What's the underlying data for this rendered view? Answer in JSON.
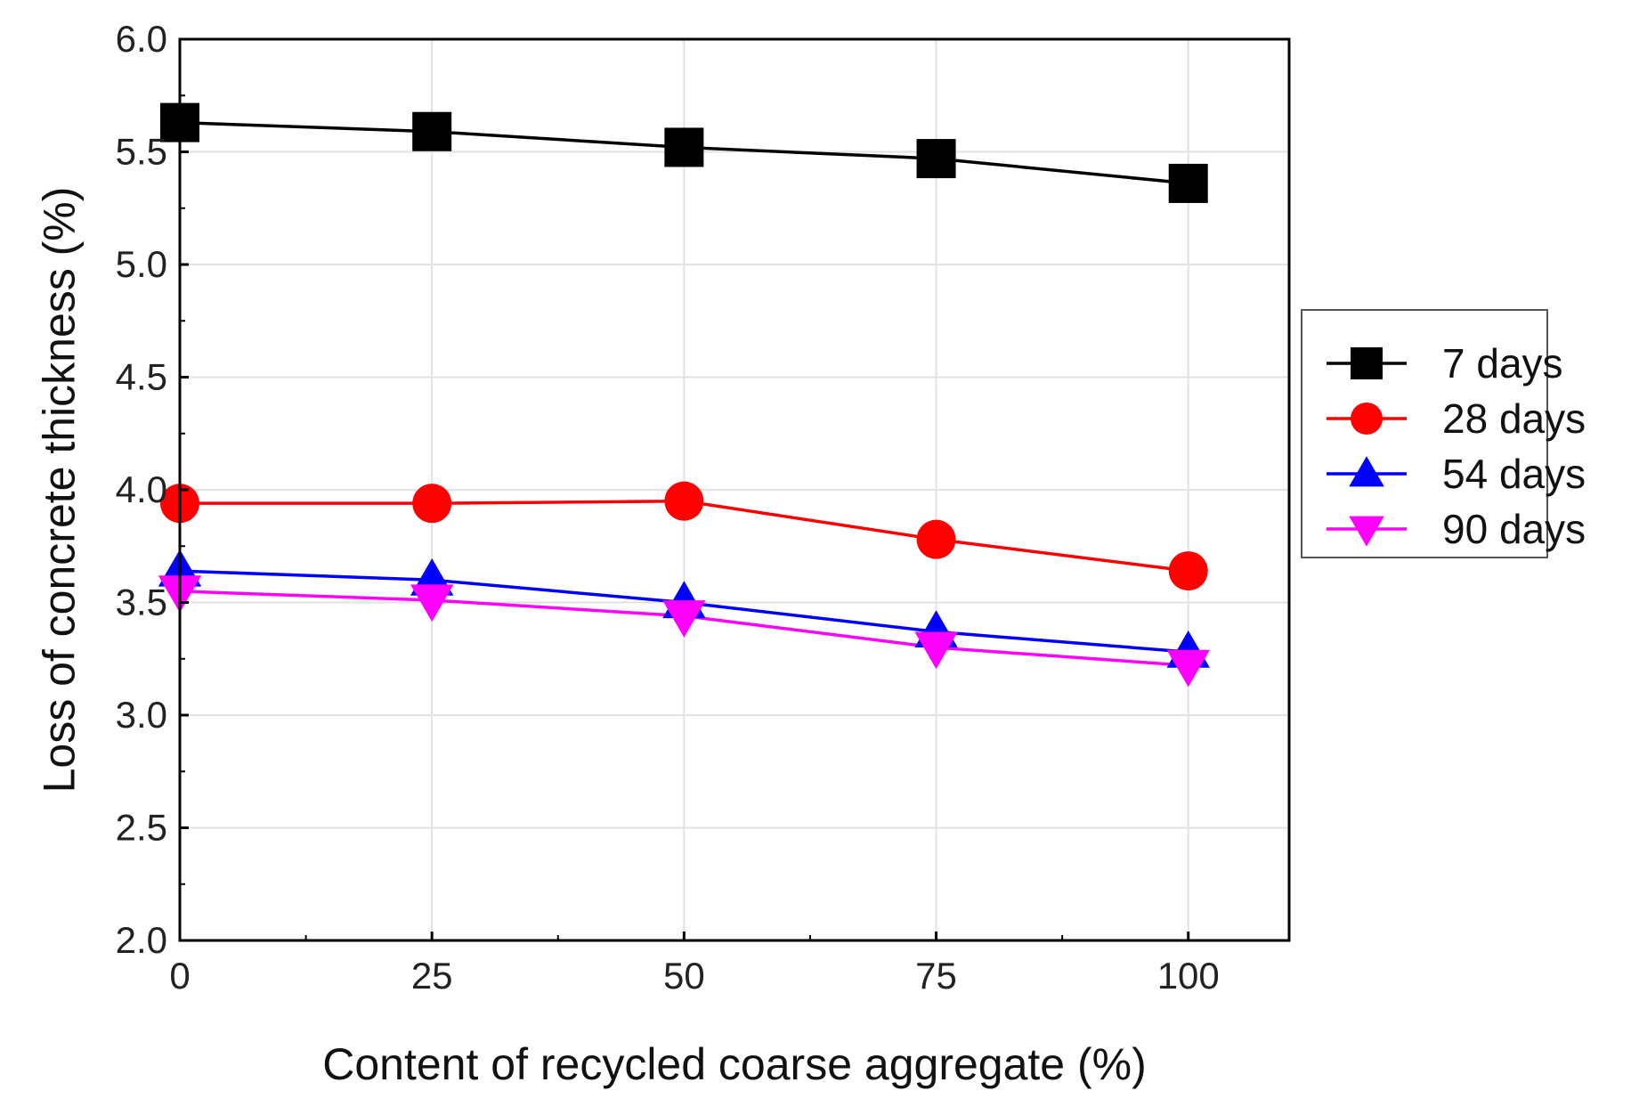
{
  "chart_data": {
    "type": "line",
    "title": "",
    "xlabel": "Content of recycled coarse aggregate (%)",
    "ylabel": "Loss of concrete thickness (%)",
    "x": [
      0,
      25,
      50,
      75,
      100
    ],
    "xlim": [
      0,
      110
    ],
    "ylim": [
      2.0,
      6.0
    ],
    "xticks": [
      "0",
      "25",
      "50",
      "75",
      "100"
    ],
    "yticks": [
      "2.0",
      "2.5",
      "3.0",
      "3.5",
      "4.0",
      "4.5",
      "5.0",
      "5.5",
      "6.0"
    ],
    "grid": true,
    "legend_position": "right",
    "series": [
      {
        "name": "7 days",
        "color": "#000000",
        "marker": "square",
        "values": [
          5.63,
          5.59,
          5.52,
          5.47,
          5.36
        ]
      },
      {
        "name": "28 days",
        "color": "#ff0000",
        "marker": "circle",
        "values": [
          3.94,
          3.94,
          3.95,
          3.78,
          3.64
        ]
      },
      {
        "name": "54 days",
        "color": "#0000ff",
        "marker": "triangle-up",
        "values": [
          3.64,
          3.6,
          3.5,
          3.37,
          3.28
        ]
      },
      {
        "name": "90 days",
        "color": "#ff00ff",
        "marker": "triangle-down",
        "values": [
          3.55,
          3.51,
          3.44,
          3.3,
          3.22
        ]
      }
    ]
  }
}
